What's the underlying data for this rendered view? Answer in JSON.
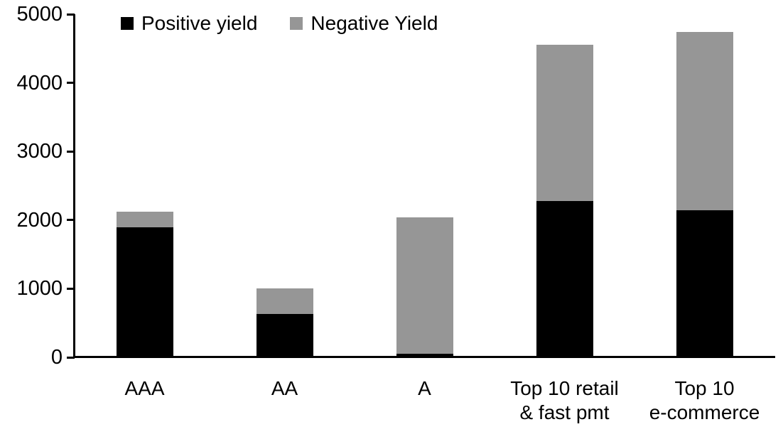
{
  "chart_data": {
    "type": "bar",
    "stacked": true,
    "title": "",
    "xlabel": "",
    "ylabel": "",
    "categories": [
      "AAA",
      "AA",
      "A",
      "Top 10 retail\n& fast pmt",
      "Top 10\ne-commerce"
    ],
    "series": [
      {
        "name": "Positive yield",
        "color": "#000000",
        "values": [
          1890,
          630,
          50,
          2280,
          2140
        ]
      },
      {
        "name": "Negative Yield",
        "color": "#969696",
        "values": [
          230,
          375,
          1990,
          2270,
          2600
        ]
      }
    ],
    "totals": [
      2120,
      1005,
      2040,
      4550,
      4740
    ],
    "ylim": [
      0,
      5000
    ],
    "yticks": [
      0,
      1000,
      2000,
      3000,
      4000,
      5000
    ],
    "grid": false,
    "legend_position": "top",
    "axis_color": "#000000",
    "background_color": "#ffffff"
  }
}
